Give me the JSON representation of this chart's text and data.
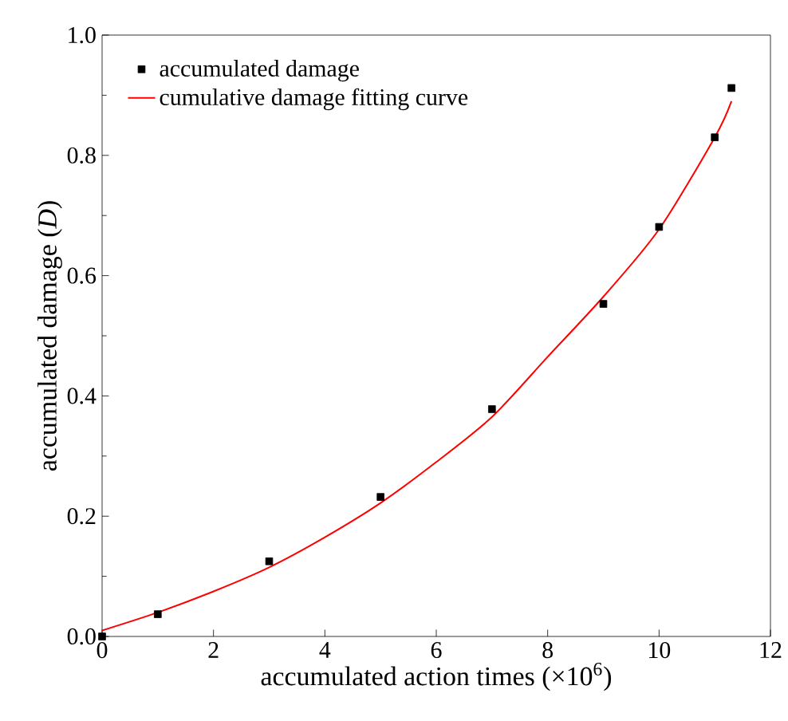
{
  "chart_data": {
    "type": "scatter",
    "xlabel": "accumulated action times (×10$^{6}$)",
    "ylabel": "accumulated damage (*D*)",
    "xlim": [
      0,
      12
    ],
    "ylim": [
      0,
      1.0
    ],
    "xticks": [
      0,
      2,
      4,
      6,
      8,
      10,
      12
    ],
    "yticks": [
      {
        "value": 0,
        "label": "0.0"
      },
      0.2,
      0.4,
      0.6,
      0.8,
      {
        "value": 1,
        "label": "1.0"
      }
    ],
    "legend": "top left",
    "grid": false,
    "series": [
      {
        "name": "accumulated damage",
        "marker": "square",
        "color": "#000000",
        "x": [
          0,
          1,
          3,
          5,
          7,
          9,
          10,
          11,
          11.3
        ],
        "values": [
          0,
          0.037,
          0.125,
          0.232,
          0.378,
          0.553,
          0.681,
          0.83,
          0.912
        ]
      },
      {
        "name": "cumulative damage fitting curve",
        "type": "line",
        "marker": "none",
        "line_style": "solid",
        "color": "#ff0000",
        "x": [
          0,
          1,
          2,
          3,
          4,
          5,
          6,
          7,
          8,
          9,
          10,
          11,
          11.3
        ],
        "values": [
          0.01,
          0.04,
          0.075,
          0.115,
          0.165,
          0.222,
          0.29,
          0.365,
          0.465,
          0.565,
          0.677,
          0.83,
          0.89
        ]
      }
    ]
  }
}
